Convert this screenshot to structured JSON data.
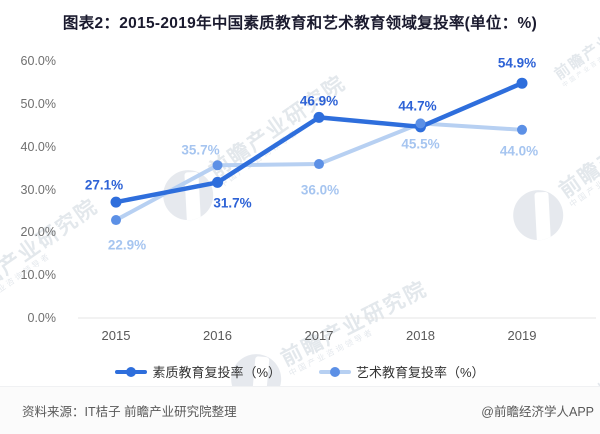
{
  "title": "图表2：2015-2019年中国素质教育和艺术教育领域复投率(单位：%)",
  "chart_data": {
    "type": "line",
    "categories": [
      "2015",
      "2016",
      "2017",
      "2018",
      "2019"
    ],
    "series": [
      {
        "name": "素质教育复投率（%）",
        "values": [
          27.1,
          31.7,
          46.9,
          44.7,
          54.9
        ],
        "color": "#2e6edc",
        "marker_color": "#2e6edc",
        "label_color": "#2d62d6",
        "label_offsets": [
          [
            -12,
            -17
          ],
          [
            15,
            21
          ],
          [
            0,
            -16
          ],
          [
            -3,
            -21
          ],
          [
            -5,
            -20
          ]
        ]
      },
      {
        "name": "艺术教育复投率（%）",
        "values": [
          22.9,
          35.7,
          36.0,
          45.5,
          44.0
        ],
        "color": "#b7d0f2",
        "marker_color": "#5c90e6",
        "label_color": "#a6c5f0",
        "label_offsets": [
          [
            11,
            25
          ],
          [
            -17,
            -15
          ],
          [
            1,
            26
          ],
          [
            0,
            21
          ],
          [
            -3,
            21
          ]
        ]
      }
    ],
    "ylim": [
      0,
      60
    ],
    "ytick_step": 10,
    "ytick_labels": [
      "0.0%",
      "10.0%",
      "20.0%",
      "30.0%",
      "40.0%",
      "50.0%",
      "60.0%"
    ],
    "value_suffix": "%",
    "grid": false,
    "legend_position": "bottom",
    "axis_color": "#e4e4e4"
  },
  "footer": {
    "source": "资料来源：IT桔子 前瞻产业研究院整理",
    "credit": "@前瞻经济学人APP"
  },
  "watermark": {
    "text": "前瞻产业研究院",
    "subtext": "中国产业咨询领导者"
  }
}
